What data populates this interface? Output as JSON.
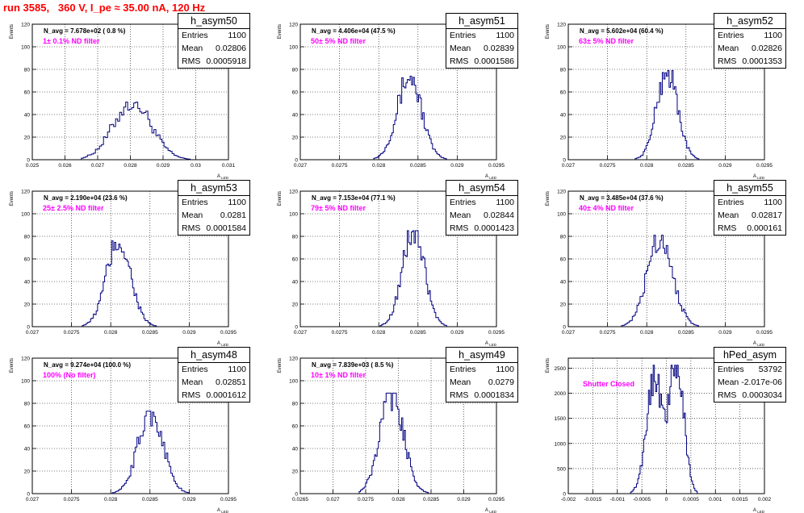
{
  "title": "run 3585,   360 V, I_pe ≈ 35.00 nA, 120 Hz",
  "stat_labels": {
    "entries": "Entries",
    "mean": "Mean",
    "rms": "RMS"
  },
  "colors": {
    "hist": "#000080",
    "annotation": "#ff00ff",
    "title": "#ff0000"
  },
  "chart_data": [
    {
      "type": "histogram",
      "name": "h_asym50",
      "ylabel": "Events",
      "xlabel": "A_{LED}",
      "navg": "N_avg = 7.678e+02 ( 0.8 %)",
      "note": "1± 0.1% ND filter",
      "entries": "1100",
      "mean": "0.02806",
      "rms": "0.0005918",
      "xlim": [
        0.025,
        0.031
      ],
      "ylim": [
        0,
        120
      ],
      "xticks": [
        "0.025",
        "0.026",
        "0.027",
        "0.028",
        "0.029",
        "0.03",
        "0.031"
      ],
      "yticks": [
        "0",
        "20",
        "40",
        "60",
        "80",
        "100",
        "120"
      ],
      "center": 0.02806,
      "sigma": 0.00058,
      "peak": 51,
      "bins": 60,
      "range": [
        0.0265,
        0.0302
      ]
    },
    {
      "type": "histogram",
      "name": "h_asym51",
      "ylabel": "Events",
      "xlabel": "A_{LED}",
      "navg": "N_avg = 4.406e+04 (47.5 %)",
      "note": "50± 5% ND filter",
      "entries": "1100",
      "mean": "0.02839",
      "rms": "0.0001586",
      "xlim": [
        0.027,
        0.0295
      ],
      "ylim": [
        0,
        120
      ],
      "xticks": [
        "0.027",
        "0.0275",
        "0.028",
        "0.0285",
        "0.029",
        "0.0295"
      ],
      "yticks": [
        "0",
        "20",
        "40",
        "60",
        "80",
        "100",
        "120"
      ],
      "center": 0.02839,
      "sigma": 0.000155,
      "peak": 74,
      "bins": 56,
      "range": [
        0.0279,
        0.0289
      ]
    },
    {
      "type": "histogram",
      "name": "h_asym52",
      "ylabel": "Events",
      "xlabel": "A_{LED}",
      "navg": "N_avg = 5.602e+04 (60.4 %)",
      "note": "63± 5% ND filter",
      "entries": "1100",
      "mean": "0.02826",
      "rms": "0.0001353",
      "xlim": [
        0.027,
        0.0295
      ],
      "ylim": [
        0,
        120
      ],
      "xticks": [
        "0.027",
        "0.0275",
        "0.028",
        "0.0285",
        "0.029",
        "0.0295"
      ],
      "yticks": [
        "0",
        "20",
        "40",
        "60",
        "80",
        "100",
        "120"
      ],
      "center": 0.02826,
      "sigma": 0.000133,
      "peak": 79,
      "bins": 52,
      "range": [
        0.0278,
        0.0287
      ]
    },
    {
      "type": "histogram",
      "name": "h_asym53",
      "ylabel": "Events",
      "xlabel": "A_{LED}",
      "navg": "N_avg = 2.190e+04 (23.6 %)",
      "note": "25± 2.5% ND filter",
      "entries": "1100",
      "mean": "0.0281",
      "rms": "0.0001584",
      "xlim": [
        0.027,
        0.0295
      ],
      "ylim": [
        0,
        120
      ],
      "xticks": [
        "0.027",
        "0.0275",
        "0.028",
        "0.0285",
        "0.029",
        "0.0295"
      ],
      "yticks": [
        "0",
        "20",
        "40",
        "60",
        "80",
        "100",
        "120"
      ],
      "center": 0.0281,
      "sigma": 0.000155,
      "peak": 76,
      "bins": 56,
      "range": [
        0.0276,
        0.0286
      ]
    },
    {
      "type": "histogram",
      "name": "h_asym54",
      "ylabel": "Events",
      "xlabel": "A_{LED}",
      "navg": "N_avg = 7.153e+04 (77.1 %)",
      "note": "79± 5% ND filter",
      "entries": "1100",
      "mean": "0.02844",
      "rms": "0.0001423",
      "xlim": [
        0.027,
        0.0295
      ],
      "ylim": [
        0,
        120
      ],
      "xticks": [
        "0.027",
        "0.0275",
        "0.028",
        "0.0285",
        "0.029",
        "0.0295"
      ],
      "yticks": [
        "0",
        "20",
        "40",
        "60",
        "80",
        "100",
        "120"
      ],
      "center": 0.02844,
      "sigma": 0.00014,
      "peak": 85,
      "bins": 52,
      "range": [
        0.028,
        0.0289
      ]
    },
    {
      "type": "histogram",
      "name": "h_asym55",
      "ylabel": "Events",
      "xlabel": "A_{LED}",
      "navg": "N_avg = 3.485e+04 (37.6 %)",
      "note": "40± 4% ND filter",
      "entries": "1100",
      "mean": "0.02817",
      "rms": "0.000161",
      "xlim": [
        0.027,
        0.0295
      ],
      "ylim": [
        0,
        120
      ],
      "xticks": [
        "0.027",
        "0.0275",
        "0.028",
        "0.0285",
        "0.029",
        "0.0295"
      ],
      "yticks": [
        "0",
        "20",
        "40",
        "60",
        "80",
        "100",
        "120"
      ],
      "center": 0.02817,
      "sigma": 0.00016,
      "peak": 81,
      "bins": 56,
      "range": [
        0.0276,
        0.0287
      ]
    },
    {
      "type": "histogram",
      "name": "h_asym48",
      "ylabel": "Events",
      "xlabel": "A_{LED}",
      "navg": "N_avg = 9.274e+04 (100.0 %)",
      "note": "100% (No filter)",
      "entries": "1100",
      "mean": "0.02851",
      "rms": "0.0001612",
      "xlim": [
        0.027,
        0.0295
      ],
      "ylim": [
        0,
        120
      ],
      "xticks": [
        "0.027",
        "0.0275",
        "0.028",
        "0.0285",
        "0.029",
        "0.0295"
      ],
      "yticks": [
        "0",
        "20",
        "40",
        "60",
        "80",
        "100",
        "120"
      ],
      "center": 0.02851,
      "sigma": 0.00016,
      "peak": 73,
      "bins": 56,
      "range": [
        0.028,
        0.0291
      ]
    },
    {
      "type": "histogram",
      "name": "h_asym49",
      "ylabel": "Events",
      "xlabel": "A_{LED}",
      "navg": "N_avg = 7.839e+03 ( 8.5 %)",
      "note": "10± 1% ND filter",
      "entries": "1100",
      "mean": "0.0279",
      "rms": "0.0001834",
      "xlim": [
        0.0265,
        0.0295
      ],
      "ylim": [
        0,
        120
      ],
      "xticks": [
        "0.0265",
        "0.027",
        "0.0275",
        "0.028",
        "0.0285",
        "0.029",
        "0.0295"
      ],
      "yticks": [
        "0",
        "20",
        "40",
        "60",
        "80",
        "100",
        "120"
      ],
      "center": 0.0279,
      "sigma": 0.00018,
      "peak": 89,
      "bins": 56,
      "range": [
        0.0274,
        0.0285
      ]
    },
    {
      "type": "histogram",
      "name": "hPed_asym",
      "ylabel": "Events",
      "xlabel": "A_{LED}",
      "navg": "",
      "note": "Shutter Closed",
      "entries": "53792",
      "mean": "-2.017e-06",
      "rms": "0.0003034",
      "xlim": [
        -0.002,
        0.002
      ],
      "ylim": [
        0,
        2700
      ],
      "xticks": [
        "-0.002",
        "-0.0015",
        "-0.001",
        "-0.0005",
        "0",
        "0.0005",
        "0.001",
        "0.0015",
        "0.002"
      ],
      "yticks": [
        "0",
        "500",
        "1000",
        "1500",
        "2000",
        "2500"
      ],
      "center": -2e-06,
      "sigma": 0.0003,
      "peak": 2560,
      "bins": 70,
      "range": [
        -0.0009,
        0.0008
      ],
      "bimodal": true
    }
  ]
}
